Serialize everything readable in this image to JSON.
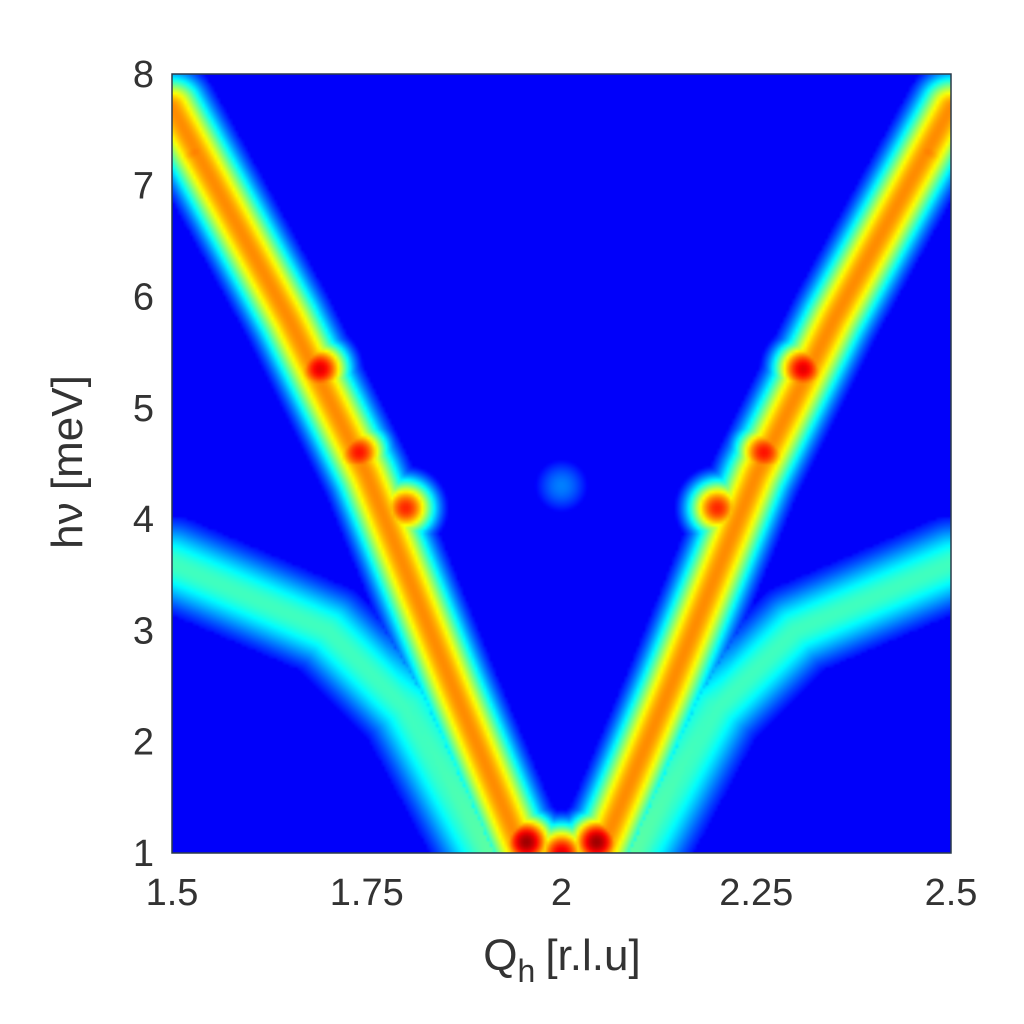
{
  "chart_data": {
    "type": "heatmap",
    "title": "",
    "xlabel": "Q",
    "xlabel_sub": "h",
    "xlabel_unit": "[r.l.u]",
    "ylabel": "hν [meV]",
    "xlim": [
      1.5,
      2.5
    ],
    "ylim": [
      1,
      8
    ],
    "xticks": [
      {
        "value": 1.5,
        "label": "1.5"
      },
      {
        "value": 1.75,
        "label": "1.75"
      },
      {
        "value": 2,
        "label": "2"
      },
      {
        "value": 2.25,
        "label": "2.25"
      },
      {
        "value": 2.5,
        "label": "2.5"
      }
    ],
    "yticks": [
      {
        "value": 1,
        "label": "1"
      },
      {
        "value": 2,
        "label": "2"
      },
      {
        "value": 3,
        "label": "3"
      },
      {
        "value": 4,
        "label": "4"
      },
      {
        "value": 5,
        "label": "5"
      },
      {
        "value": 6,
        "label": "6"
      },
      {
        "value": 7,
        "label": "7"
      },
      {
        "value": 8,
        "label": "8"
      }
    ],
    "colormap": "jet",
    "background_intensity": 0.12,
    "branches": [
      {
        "points": [
          [
            1.5,
            7.7
          ],
          [
            1.65,
            5.8
          ],
          [
            1.75,
            4.4
          ],
          [
            1.86,
            2.5
          ],
          [
            1.95,
            1.0
          ]
        ],
        "peak_intensity": 0.72
      },
      {
        "points": [
          [
            2.5,
            7.7
          ],
          [
            2.35,
            5.8
          ],
          [
            2.25,
            4.4
          ],
          [
            2.14,
            2.5
          ],
          [
            2.05,
            1.0
          ]
        ],
        "peak_intensity": 0.72
      },
      {
        "points": [
          [
            1.5,
            3.6
          ],
          [
            1.7,
            3.0
          ],
          [
            1.8,
            2.3
          ],
          [
            1.9,
            1.0
          ]
        ],
        "peak_intensity": 0.42
      },
      {
        "points": [
          [
            2.5,
            3.6
          ],
          [
            2.3,
            3.0
          ],
          [
            2.2,
            2.3
          ],
          [
            2.1,
            1.0
          ]
        ],
        "peak_intensity": 0.42
      }
    ],
    "hotspots": [
      {
        "x": 1.955,
        "y": 1.1,
        "intensity": 0.97
      },
      {
        "x": 2.045,
        "y": 1.1,
        "intensity": 0.97
      },
      {
        "x": 2.0,
        "y": 1.0,
        "intensity": 0.9
      },
      {
        "x": 1.69,
        "y": 5.35,
        "intensity": 0.9
      },
      {
        "x": 1.74,
        "y": 4.6,
        "intensity": 0.86
      },
      {
        "x": 1.8,
        "y": 4.1,
        "intensity": 0.84
      },
      {
        "x": 2.31,
        "y": 5.35,
        "intensity": 0.9
      },
      {
        "x": 2.26,
        "y": 4.6,
        "intensity": 0.86
      },
      {
        "x": 2.2,
        "y": 4.1,
        "intensity": 0.84
      },
      {
        "x": 1.53,
        "y": 7.3,
        "intensity": 0.75
      },
      {
        "x": 2.47,
        "y": 7.3,
        "intensity": 0.75
      },
      {
        "x": 2.0,
        "y": 4.3,
        "intensity": 0.25
      }
    ]
  }
}
